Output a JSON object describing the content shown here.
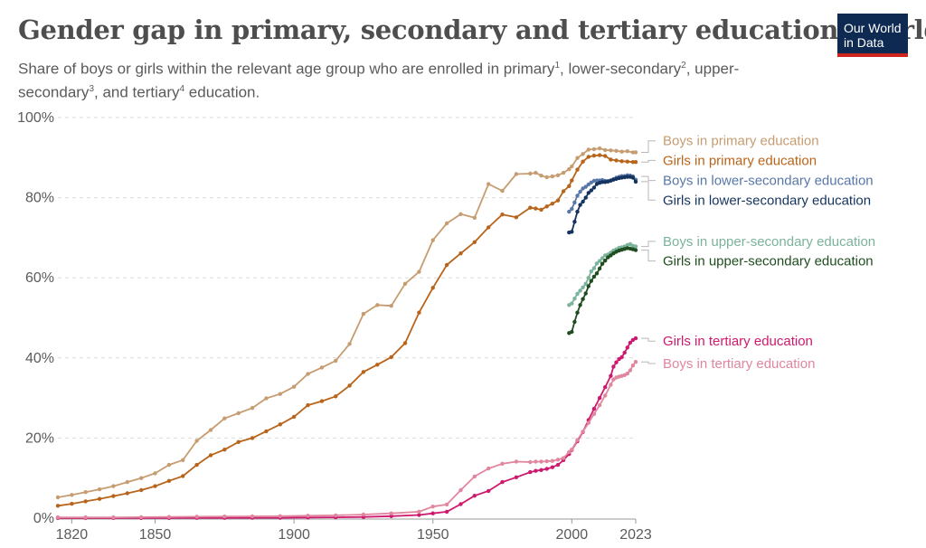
{
  "header": {
    "title": "Gender gap in primary, secondary and tertiary education, World",
    "subtitle_parts": [
      {
        "text": "Share of boys or girls within the relevant age group who are enrolled in primary"
      },
      {
        "sup": "1"
      },
      {
        "text": ", lower-secondary"
      },
      {
        "sup": "2"
      },
      {
        "text": ", upper-secondary"
      },
      {
        "sup": "3"
      },
      {
        "text": ", and tertiary"
      },
      {
        "sup": "4"
      },
      {
        "text": " education."
      }
    ],
    "logo_line1": "Our World",
    "logo_line2": "in Data"
  },
  "colors": {
    "grid": "#dcdcdc",
    "axis": "#999999"
  },
  "chart_data": {
    "type": "line",
    "title": "Gender gap in primary, secondary and tertiary education, World",
    "xlabel": "",
    "ylabel": "",
    "xlim": [
      1815,
      2023
    ],
    "ylim": [
      0,
      100
    ],
    "x_ticks": [
      1820,
      1850,
      1900,
      1950,
      2000,
      2023
    ],
    "y_ticks": [
      0,
      20,
      40,
      60,
      80,
      100
    ],
    "y_tick_labels": [
      "0%",
      "20%",
      "40%",
      "60%",
      "80%",
      "100%"
    ],
    "grid": true,
    "series": [
      {
        "name": "Boys in primary education",
        "color": "#c69c71",
        "x": [
          1815,
          1820,
          1825,
          1830,
          1835,
          1840,
          1845,
          1850,
          1855,
          1860,
          1865,
          1870,
          1875,
          1880,
          1885,
          1890,
          1895,
          1900,
          1905,
          1910,
          1915,
          1920,
          1925,
          1930,
          1935,
          1940,
          1945,
          1950,
          1955,
          1960,
          1965,
          1970,
          1975,
          1980,
          1985,
          1987,
          1989,
          1991,
          1993,
          1995,
          1997,
          1999,
          2000,
          2002,
          2004,
          2006,
          2008,
          2010,
          2012,
          2014,
          2016,
          2018,
          2020,
          2022,
          2023
        ],
        "values": [
          5.2,
          5.8,
          6.5,
          7.2,
          8.0,
          9.0,
          10.0,
          11.2,
          13.3,
          14.5,
          19.3,
          22.0,
          24.9,
          26.2,
          27.5,
          29.9,
          31.0,
          32.8,
          36.0,
          37.6,
          39.3,
          43.5,
          51.0,
          53.2,
          53.0,
          58.5,
          61.5,
          69.4,
          73.6,
          75.9,
          75.0,
          83.4,
          81.7,
          85.9,
          86.0,
          86.2,
          85.5,
          85.1,
          85.3,
          85.6,
          86.2,
          87.1,
          87.8,
          89.9,
          90.9,
          92.0,
          92.1,
          92.3,
          91.9,
          91.8,
          91.7,
          91.5,
          91.6,
          91.3,
          91.3
        ]
      },
      {
        "name": "Girls in primary education",
        "color": "#b8641a",
        "x": [
          1815,
          1820,
          1825,
          1830,
          1835,
          1840,
          1845,
          1850,
          1855,
          1860,
          1865,
          1870,
          1875,
          1880,
          1885,
          1890,
          1895,
          1900,
          1905,
          1910,
          1915,
          1920,
          1925,
          1930,
          1935,
          1940,
          1945,
          1950,
          1955,
          1960,
          1965,
          1970,
          1975,
          1980,
          1985,
          1987,
          1989,
          1991,
          1993,
          1995,
          1997,
          1999,
          2000,
          2002,
          2004,
          2006,
          2008,
          2010,
          2012,
          2014,
          2016,
          2018,
          2020,
          2022,
          2023
        ],
        "values": [
          3.1,
          3.6,
          4.2,
          4.8,
          5.5,
          6.2,
          7.0,
          8.0,
          9.3,
          10.5,
          13.3,
          15.7,
          17.1,
          19.0,
          20.0,
          21.7,
          23.4,
          25.3,
          28.2,
          29.2,
          30.4,
          33.1,
          36.5,
          38.3,
          40.2,
          43.7,
          51.3,
          57.5,
          63.2,
          66.1,
          68.9,
          72.6,
          75.8,
          75.1,
          77.5,
          77.3,
          77.0,
          77.8,
          78.5,
          79.3,
          81.6,
          82.9,
          84.3,
          87.0,
          89.0,
          90.2,
          90.5,
          90.6,
          90.4,
          89.5,
          89.3,
          89.1,
          89.0,
          88.9,
          88.9
        ]
      },
      {
        "name": "Boys in lower-secondary education",
        "color": "#5877a8",
        "x": [
          1999,
          2000,
          2001,
          2002,
          2003,
          2004,
          2005,
          2006,
          2007,
          2008,
          2009,
          2010,
          2011,
          2012,
          2013,
          2014,
          2015,
          2016,
          2017,
          2018,
          2019,
          2020,
          2021,
          2022,
          2023
        ],
        "values": [
          76.5,
          77.2,
          78.8,
          80.5,
          81.5,
          82.3,
          82.7,
          83.3,
          83.8,
          84.2,
          84.3,
          84.3,
          84.4,
          84.2,
          84.0,
          84.2,
          84.6,
          85.0,
          85.2,
          85.4,
          85.4,
          85.6,
          85.5,
          85.3,
          84.5
        ]
      },
      {
        "name": "Girls in lower-secondary education",
        "color": "#15335f",
        "x": [
          1999,
          2000,
          2001,
          2002,
          2003,
          2004,
          2005,
          2006,
          2007,
          2008,
          2009,
          2010,
          2011,
          2012,
          2013,
          2014,
          2015,
          2016,
          2017,
          2018,
          2019,
          2020,
          2021,
          2022,
          2023
        ],
        "values": [
          71.3,
          71.5,
          74.0,
          76.5,
          78.2,
          79.0,
          80.0,
          81.2,
          81.8,
          82.5,
          83.4,
          83.7,
          83.9,
          83.9,
          84.1,
          84.3,
          84.5,
          84.7,
          84.9,
          85.0,
          85.1,
          85.2,
          85.2,
          85.0,
          84.0
        ]
      },
      {
        "name": "Boys in upper-secondary education",
        "color": "#7bb39c",
        "x": [
          1999,
          2000,
          2001,
          2002,
          2003,
          2004,
          2005,
          2006,
          2007,
          2008,
          2009,
          2010,
          2011,
          2012,
          2013,
          2014,
          2015,
          2016,
          2017,
          2018,
          2019,
          2020,
          2021,
          2022,
          2023
        ],
        "values": [
          53.2,
          53.6,
          54.8,
          56.0,
          56.8,
          57.6,
          58.5,
          60.0,
          61.6,
          62.4,
          63.6,
          64.2,
          64.9,
          65.6,
          65.8,
          66.3,
          66.8,
          67.1,
          67.5,
          67.6,
          67.8,
          68.2,
          68.4,
          68.0,
          67.8
        ]
      },
      {
        "name": "Girls in upper-secondary education",
        "color": "#1f4d1f",
        "x": [
          1999,
          2000,
          2001,
          2002,
          2003,
          2004,
          2005,
          2006,
          2007,
          2008,
          2009,
          2010,
          2011,
          2012,
          2013,
          2014,
          2015,
          2016,
          2017,
          2018,
          2019,
          2020,
          2021,
          2022,
          2023
        ],
        "values": [
          46.2,
          46.5,
          49.0,
          51.3,
          53.2,
          54.7,
          56.1,
          57.9,
          59.2,
          60.3,
          61.1,
          62.3,
          63.5,
          64.3,
          65.1,
          65.6,
          66.1,
          66.5,
          66.8,
          67.0,
          67.2,
          67.4,
          67.3,
          67.1,
          66.9
        ]
      },
      {
        "name": "Girls in tertiary education",
        "color": "#ce1a6e",
        "x": [
          1815,
          1825,
          1835,
          1845,
          1855,
          1865,
          1875,
          1885,
          1895,
          1905,
          1915,
          1925,
          1935,
          1945,
          1950,
          1955,
          1960,
          1965,
          1970,
          1975,
          1980,
          1985,
          1987,
          1989,
          1991,
          1993,
          1995,
          1997,
          1999,
          2000,
          2002,
          2004,
          2006,
          2008,
          2010,
          2012,
          2014,
          2015,
          2016,
          2017,
          2018,
          2019,
          2020,
          2021,
          2022,
          2023
        ],
        "values": [
          0.05,
          0.05,
          0.05,
          0.05,
          0.05,
          0.06,
          0.07,
          0.08,
          0.1,
          0.15,
          0.2,
          0.3,
          0.5,
          0.8,
          1.2,
          1.6,
          3.5,
          5.6,
          6.8,
          9.0,
          10.2,
          11.5,
          11.8,
          12.0,
          12.3,
          12.7,
          13.3,
          14.5,
          16.0,
          17.0,
          19.2,
          21.5,
          24.5,
          27.3,
          30.0,
          32.7,
          35.5,
          37.8,
          38.9,
          39.7,
          40.2,
          41.3,
          42.6,
          43.8,
          44.5,
          44.9
        ]
      },
      {
        "name": "Boys in tertiary education",
        "color": "#e0869e",
        "x": [
          1815,
          1825,
          1835,
          1845,
          1855,
          1865,
          1875,
          1885,
          1895,
          1905,
          1915,
          1925,
          1935,
          1945,
          1950,
          1955,
          1960,
          1965,
          1970,
          1975,
          1980,
          1985,
          1987,
          1989,
          1991,
          1993,
          1995,
          1997,
          1999,
          2000,
          2002,
          2004,
          2006,
          2008,
          2010,
          2012,
          2014,
          2015,
          2016,
          2017,
          2018,
          2019,
          2020,
          2021,
          2022,
          2023
        ],
        "values": [
          0.2,
          0.2,
          0.2,
          0.25,
          0.3,
          0.35,
          0.4,
          0.45,
          0.5,
          0.6,
          0.7,
          0.9,
          1.2,
          1.6,
          2.9,
          3.4,
          7.0,
          10.4,
          12.4,
          13.6,
          14.1,
          14.0,
          14.1,
          14.1,
          14.2,
          14.3,
          14.6,
          15.0,
          16.5,
          17.1,
          19.5,
          21.6,
          23.8,
          26.0,
          28.2,
          30.6,
          33.3,
          34.6,
          35.1,
          35.3,
          35.5,
          35.7,
          36.1,
          36.9,
          38.1,
          39.0
        ]
      }
    ],
    "labels": [
      {
        "series": "Boys in primary education",
        "text": "Boys in primary education",
        "anchor_value": 91.3,
        "label_value": 94.2
      },
      {
        "series": "Girls in primary education",
        "text": "Girls in primary education",
        "anchor_value": 88.9,
        "label_value": 89.3
      },
      {
        "series": "Boys in lower-secondary education",
        "text": "Boys in lower-secondary education",
        "anchor_value": 85.3,
        "label_value": 84.3
      },
      {
        "series": "Girls in lower-secondary education",
        "text": "Girls in lower-secondary education",
        "anchor_value": 84.0,
        "label_value": 79.4
      },
      {
        "series": "Boys in upper-secondary education",
        "text": "Boys in upper-secondary education",
        "anchor_value": 67.8,
        "label_value": 69.1
      },
      {
        "series": "Girls in upper-secondary education",
        "text": "Girls in upper-secondary education",
        "anchor_value": 66.9,
        "label_value": 64.2
      },
      {
        "series": "Girls in tertiary education",
        "text": "Girls in tertiary education",
        "anchor_value": 44.9,
        "label_value": 44.2
      },
      {
        "series": "Boys in tertiary education",
        "text": "Boys in tertiary education",
        "anchor_value": 39.0,
        "label_value": 38.6
      }
    ]
  }
}
